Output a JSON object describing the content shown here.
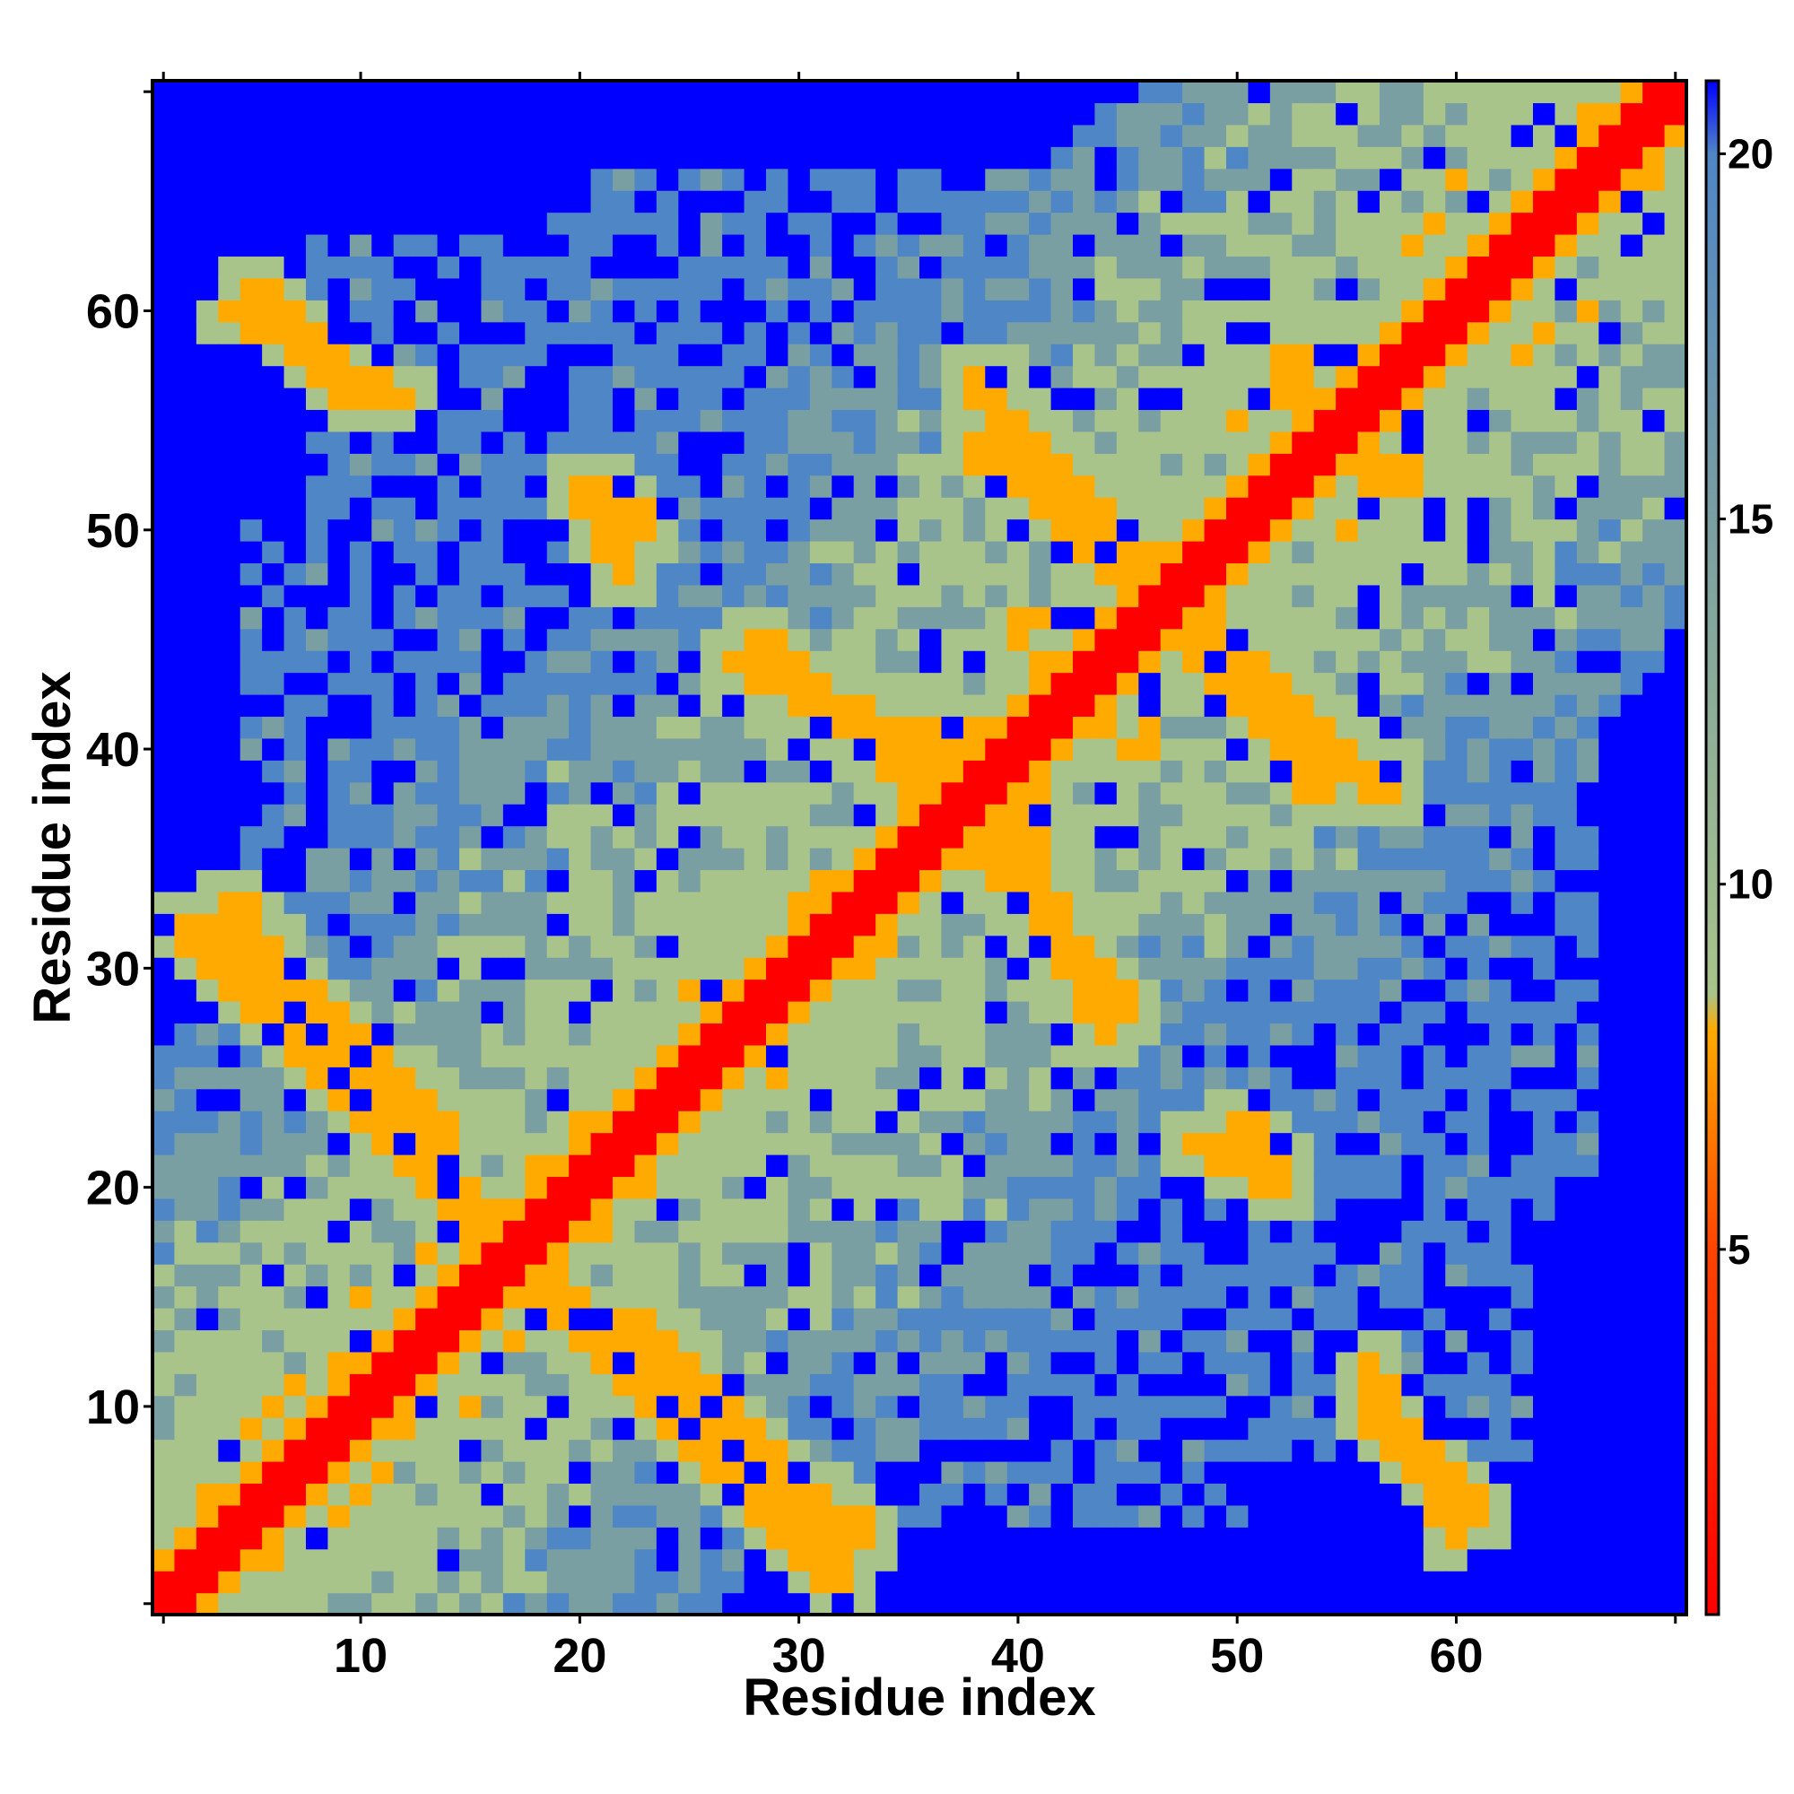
{
  "chart_data": {
    "type": "heatmap",
    "title": "",
    "xlabel": "Residue index",
    "ylabel": "Residue index",
    "n_residues": 70,
    "xlim": [
      1,
      70
    ],
    "ylim": [
      1,
      70
    ],
    "x_ticks": [
      10,
      20,
      30,
      40,
      50,
      60
    ],
    "y_ticks": [
      10,
      20,
      30,
      40,
      50,
      60
    ],
    "colorbar": {
      "range": [
        0,
        21
      ],
      "ticks": [
        5,
        10,
        15,
        20
      ],
      "stops": [
        {
          "value": 0,
          "color": "#ff0000"
        },
        {
          "value": 5,
          "color": "#ff4400"
        },
        {
          "value": 8,
          "color": "#ffaa00"
        },
        {
          "value": 8.5,
          "color": "#a9c48a"
        },
        {
          "value": 15,
          "color": "#7a9fa2"
        },
        {
          "value": 20,
          "color": "#4f86c6"
        },
        {
          "value": 21,
          "color": "#0000ff"
        }
      ]
    },
    "colors": {
      "contact": "#ff0000",
      "near": "#ff6600",
      "mid": "#ffaa00",
      "green": "#a9c48a",
      "teal": "#7a9fa2",
      "steel": "#4f86c6",
      "far": "#0000ff"
    },
    "structure": {
      "diagonal_value": 0,
      "secondary_diagonal_value": 7,
      "contact_stripes": [
        {
          "from": [
            2,
            32
          ],
          "to": [
            20,
            14
          ],
          "value": 6
        },
        {
          "from": [
            4,
            60
          ],
          "to": [
            12,
            56
          ],
          "value": 6
        },
        {
          "from": [
            21,
            52
          ],
          "to": [
            23,
            50
          ],
          "value": 6
        },
        {
          "from": [
            27,
            44
          ],
          "to": [
            36,
            40
          ],
          "value": 6
        },
        {
          "from": [
            38,
            36
          ],
          "to": [
            45,
            28
          ],
          "value": 6
        },
        {
          "from": [
            38,
            54
          ],
          "to": [
            46,
            47
          ],
          "value": 6
        },
        {
          "from": [
            48,
            46
          ],
          "to": [
            57,
            38
          ],
          "value": 6
        },
        {
          "from": [
            52,
            58
          ],
          "to": [
            57,
            52
          ],
          "value": 6
        },
        {
          "from": [
            22,
            14
          ],
          "to": [
            33,
            4
          ],
          "value": 6
        },
        {
          "from": [
            48,
            22
          ],
          "to": [
            52,
            20
          ],
          "value": 6
        },
        {
          "from": [
            56,
            10
          ],
          "to": [
            61,
            5
          ],
          "value": 6
        }
      ],
      "envelope_width": 30,
      "far_value": 21
    }
  }
}
